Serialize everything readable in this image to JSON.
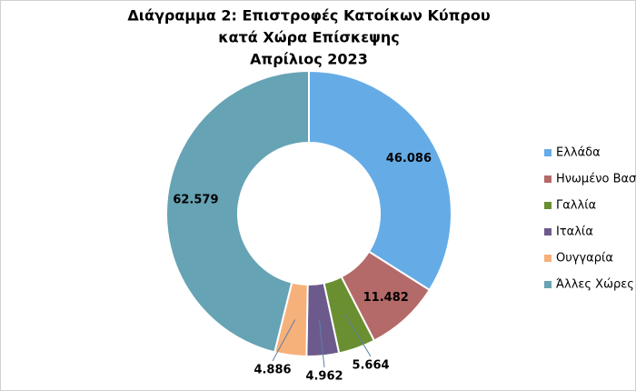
{
  "chart_data": {
    "type": "donut",
    "title": "Διάγραμμα 2: Επιστροφές Κατοίκων Κύπρου",
    "subtitle": "κατά Χώρα Επίσκεψης",
    "subtitle2": "Απρίλιος 2023",
    "categories": [
      "Ελλάδα",
      "Ηνωμένο Βασίλειο",
      "Γαλλία",
      "Ιταλία",
      "Ουγγαρία",
      "Άλλες Χώρες"
    ],
    "values": [
      46086,
      11482,
      5664,
      4962,
      4886,
      62579
    ],
    "value_labels": [
      "46.086",
      "11.482",
      "5.664",
      "4.962",
      "4.886",
      "62.579"
    ],
    "colors": [
      "#65ace6",
      "#b46a68",
      "#6a8f31",
      "#6d5a8c",
      "#f6b07a",
      "#66a3b4"
    ],
    "legend": "right"
  }
}
